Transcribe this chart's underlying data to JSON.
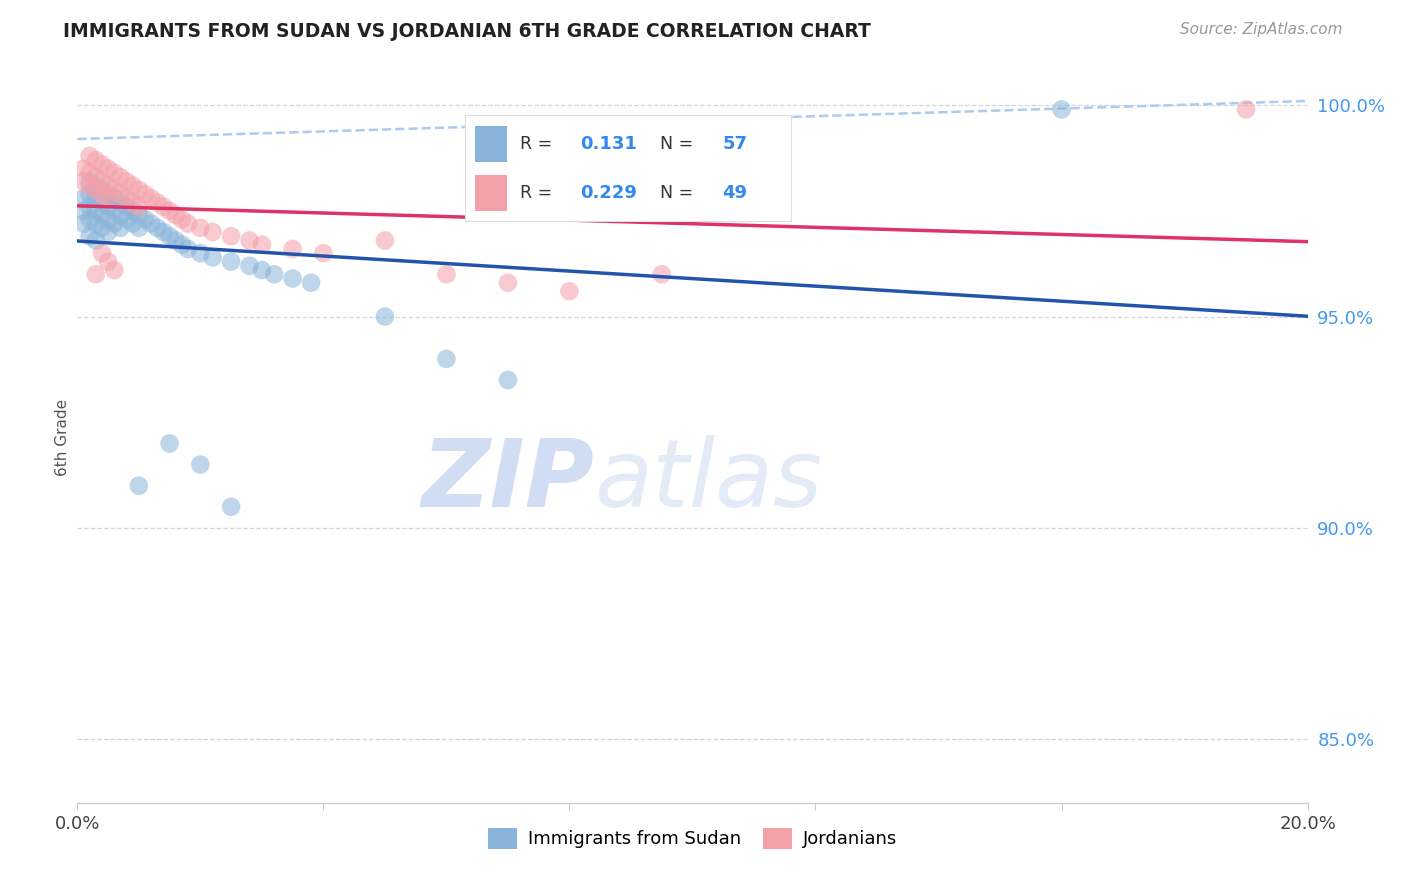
{
  "title": "IMMIGRANTS FROM SUDAN VS JORDANIAN 6TH GRADE CORRELATION CHART",
  "source_text": "Source: ZipAtlas.com",
  "ylabel": "6th Grade",
  "x_label_blue": "Immigrants from Sudan",
  "x_label_pink": "Jordanians",
  "xlim": [
    0.0,
    0.2
  ],
  "ylim": [
    0.835,
    1.008
  ],
  "y_ticks_right": [
    0.85,
    0.9,
    0.95,
    1.0
  ],
  "y_tick_labels_right": [
    "85.0%",
    "90.0%",
    "95.0%",
    "100.0%"
  ],
  "R_blue": 0.131,
  "N_blue": 57,
  "R_pink": 0.229,
  "N_pink": 49,
  "blue_color": "#89B4D9",
  "pink_color": "#F4A0A8",
  "trendline_blue_color": "#2255AA",
  "trendline_pink_color": "#DD3366",
  "dashed_line_color": "#AACCEE",
  "watermark_zip": "ZIP",
  "watermark_atlas": "atlas",
  "background_color": "#FFFFFF",
  "grid_color": "#CCCCCC",
  "blue_scatter_x": [
    0.001,
    0.001,
    0.001,
    0.002,
    0.002,
    0.002,
    0.002,
    0.002,
    0.003,
    0.003,
    0.003,
    0.003,
    0.003,
    0.004,
    0.004,
    0.004,
    0.004,
    0.005,
    0.005,
    0.005,
    0.005,
    0.006,
    0.006,
    0.006,
    0.007,
    0.007,
    0.007,
    0.008,
    0.008,
    0.009,
    0.009,
    0.01,
    0.01,
    0.011,
    0.012,
    0.013,
    0.014,
    0.015,
    0.016,
    0.017,
    0.018,
    0.02,
    0.022,
    0.025,
    0.028,
    0.03,
    0.032,
    0.035,
    0.038,
    0.01,
    0.015,
    0.02,
    0.025,
    0.05,
    0.06,
    0.07,
    0.16
  ],
  "blue_scatter_y": [
    0.975,
    0.978,
    0.972,
    0.982,
    0.979,
    0.976,
    0.973,
    0.969,
    0.981,
    0.978,
    0.975,
    0.972,
    0.968,
    0.98,
    0.977,
    0.974,
    0.971,
    0.979,
    0.976,
    0.973,
    0.97,
    0.978,
    0.975,
    0.972,
    0.977,
    0.974,
    0.971,
    0.976,
    0.973,
    0.975,
    0.972,
    0.974,
    0.971,
    0.973,
    0.972,
    0.971,
    0.97,
    0.969,
    0.968,
    0.967,
    0.966,
    0.965,
    0.964,
    0.963,
    0.962,
    0.961,
    0.96,
    0.959,
    0.958,
    0.91,
    0.92,
    0.915,
    0.905,
    0.95,
    0.94,
    0.935,
    0.999
  ],
  "pink_scatter_x": [
    0.001,
    0.001,
    0.002,
    0.002,
    0.002,
    0.003,
    0.003,
    0.003,
    0.004,
    0.004,
    0.004,
    0.005,
    0.005,
    0.005,
    0.006,
    0.006,
    0.007,
    0.007,
    0.008,
    0.008,
    0.009,
    0.009,
    0.01,
    0.01,
    0.011,
    0.012,
    0.013,
    0.014,
    0.015,
    0.016,
    0.017,
    0.018,
    0.02,
    0.022,
    0.025,
    0.028,
    0.03,
    0.035,
    0.04,
    0.003,
    0.004,
    0.005,
    0.006,
    0.05,
    0.06,
    0.07,
    0.08,
    0.095,
    0.19
  ],
  "pink_scatter_y": [
    0.985,
    0.982,
    0.988,
    0.984,
    0.981,
    0.987,
    0.983,
    0.98,
    0.986,
    0.982,
    0.979,
    0.985,
    0.981,
    0.978,
    0.984,
    0.98,
    0.983,
    0.979,
    0.982,
    0.978,
    0.981,
    0.977,
    0.98,
    0.976,
    0.979,
    0.978,
    0.977,
    0.976,
    0.975,
    0.974,
    0.973,
    0.972,
    0.971,
    0.97,
    0.969,
    0.968,
    0.967,
    0.966,
    0.965,
    0.96,
    0.965,
    0.963,
    0.961,
    0.968,
    0.96,
    0.958,
    0.956,
    0.96,
    0.999
  ]
}
